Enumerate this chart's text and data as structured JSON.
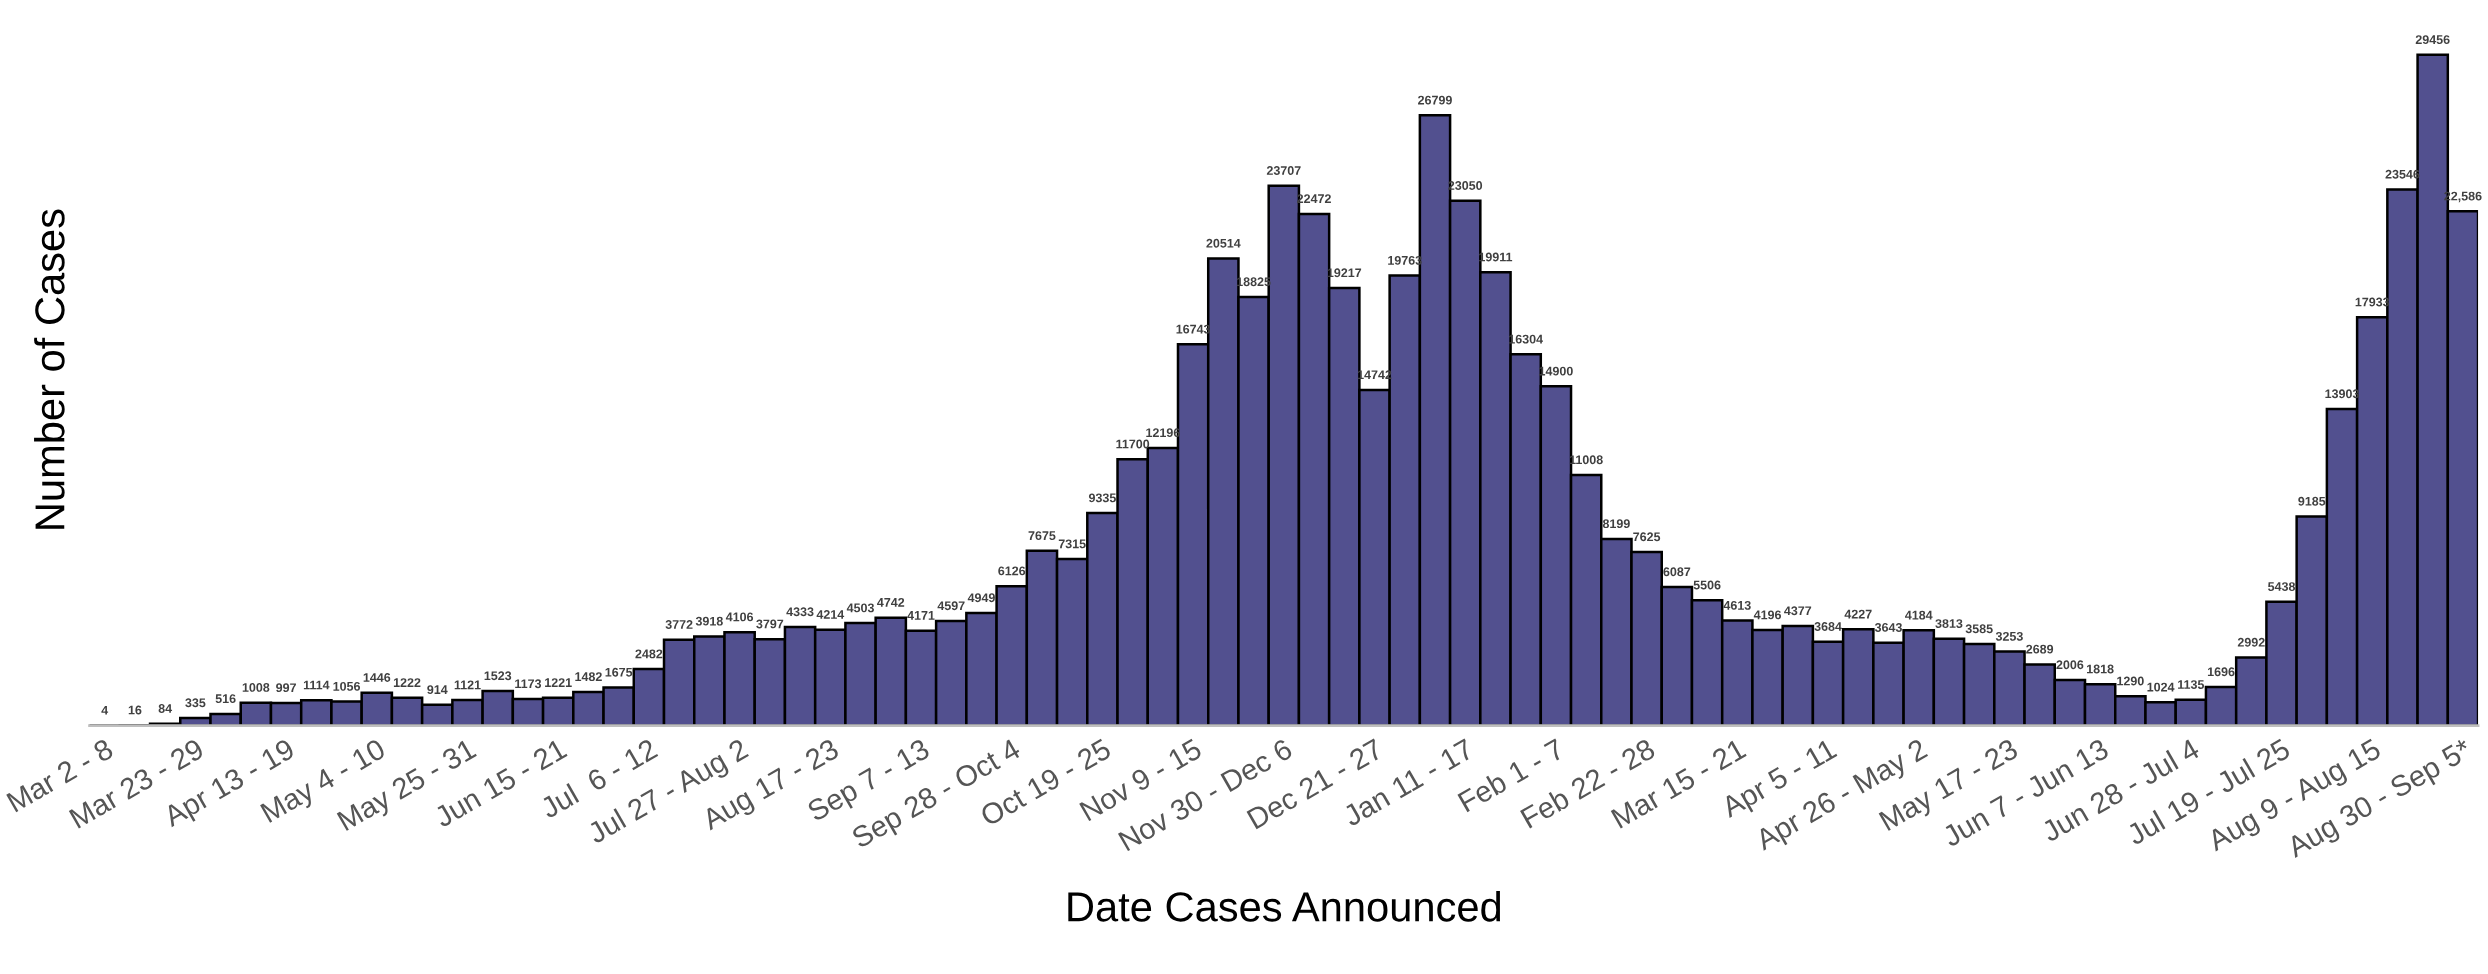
{
  "chart_data": {
    "type": "bar",
    "xlabel": "Date Cases Announced",
    "ylabel": "Number of Cases",
    "categories": [
      "Mar 2 - 8",
      null,
      null,
      "Mar 23 - 29",
      null,
      null,
      "Apr 13 - 19",
      null,
      null,
      "May 4 - 10",
      null,
      null,
      "May 25 - 31",
      null,
      null,
      "Jun 15 - 21",
      null,
      null,
      "Jul  6 - 12",
      null,
      null,
      "Jul 27 - Aug 2",
      null,
      null,
      "Aug 17 - 23",
      null,
      null,
      "Sep 7 - 13",
      null,
      null,
      "Sep 28 - Oct 4",
      null,
      null,
      "Oct 19 - 25",
      null,
      null,
      "Nov 9 - 15",
      null,
      null,
      "Nov 30 - Dec 6",
      null,
      null,
      "Dec 21 - 27",
      null,
      null,
      "Jan 11 - 17",
      null,
      null,
      "Feb 1 - 7",
      null,
      null,
      "Feb 22 - 28",
      null,
      null,
      "Mar 15 - 21",
      null,
      null,
      "Apr 5 - 11",
      null,
      null,
      "Apr 26 - May 2",
      null,
      null,
      "May 17 - 23",
      null,
      null,
      "Jun 7 - Jun 13",
      null,
      null,
      "Jun 28 - Jul 4",
      null,
      null,
      "Jul 19 - Jul 25",
      null,
      null,
      "Aug 9 - Aug 15",
      null,
      null,
      "Aug 30 - Sep 5*"
    ],
    "values": [
      4,
      16,
      84,
      335,
      516,
      1008,
      997,
      1114,
      1056,
      1446,
      1222,
      914,
      1121,
      1523,
      1173,
      1221,
      1482,
      1675,
      2482,
      3772,
      3918,
      4106,
      3797,
      4333,
      4214,
      4503,
      4742,
      4171,
      4597,
      4949,
      6126,
      7675,
      7315,
      9335,
      11700,
      12196,
      16743,
      20514,
      18825,
      23707,
      22472,
      19217,
      14742,
      19763,
      26799,
      23050,
      19911,
      16304,
      14900,
      11008,
      8199,
      7625,
      6087,
      5506,
      4613,
      4196,
      4377,
      3684,
      4227,
      3643,
      4184,
      3813,
      3585,
      3253,
      2689,
      2006,
      1818,
      1290,
      1024,
      1135,
      1696,
      2992,
      5438,
      9185,
      13903,
      17933,
      23546,
      29456,
      22586
    ],
    "value_labels": [
      "4",
      "16",
      "84",
      "335",
      "516",
      "1008",
      "997",
      "1114",
      "1056",
      "1446",
      "1222",
      "914",
      "1121",
      "1523",
      "1173",
      "1221",
      "1482",
      "1675",
      "2482",
      "3772",
      "3918",
      "4106",
      "3797",
      "4333",
      "4214",
      "4503",
      "4742",
      "4171",
      "4597",
      "4949",
      "6126",
      "7675",
      "7315",
      "9335",
      "11700",
      "12196",
      "16743",
      "20514",
      "18825",
      "23707",
      "22472",
      "19217",
      "14742",
      "19763",
      "26799",
      "23050",
      "19911",
      "16304",
      "14900",
      "11008",
      "8199",
      "7625",
      "6087",
      "5506",
      "4613",
      "4196",
      "4377",
      "3684",
      "4227",
      "3643",
      "4184",
      "3813",
      "3585",
      "3253",
      "2689",
      "2006",
      "1818",
      "1290",
      "1024",
      "1135",
      "1696",
      "2992",
      "5438",
      "9185",
      "13903",
      "17933",
      "23546",
      "29456",
      "22,586"
    ],
    "color": "#52508f",
    "tick_labels": "x",
    "grid": false
  }
}
